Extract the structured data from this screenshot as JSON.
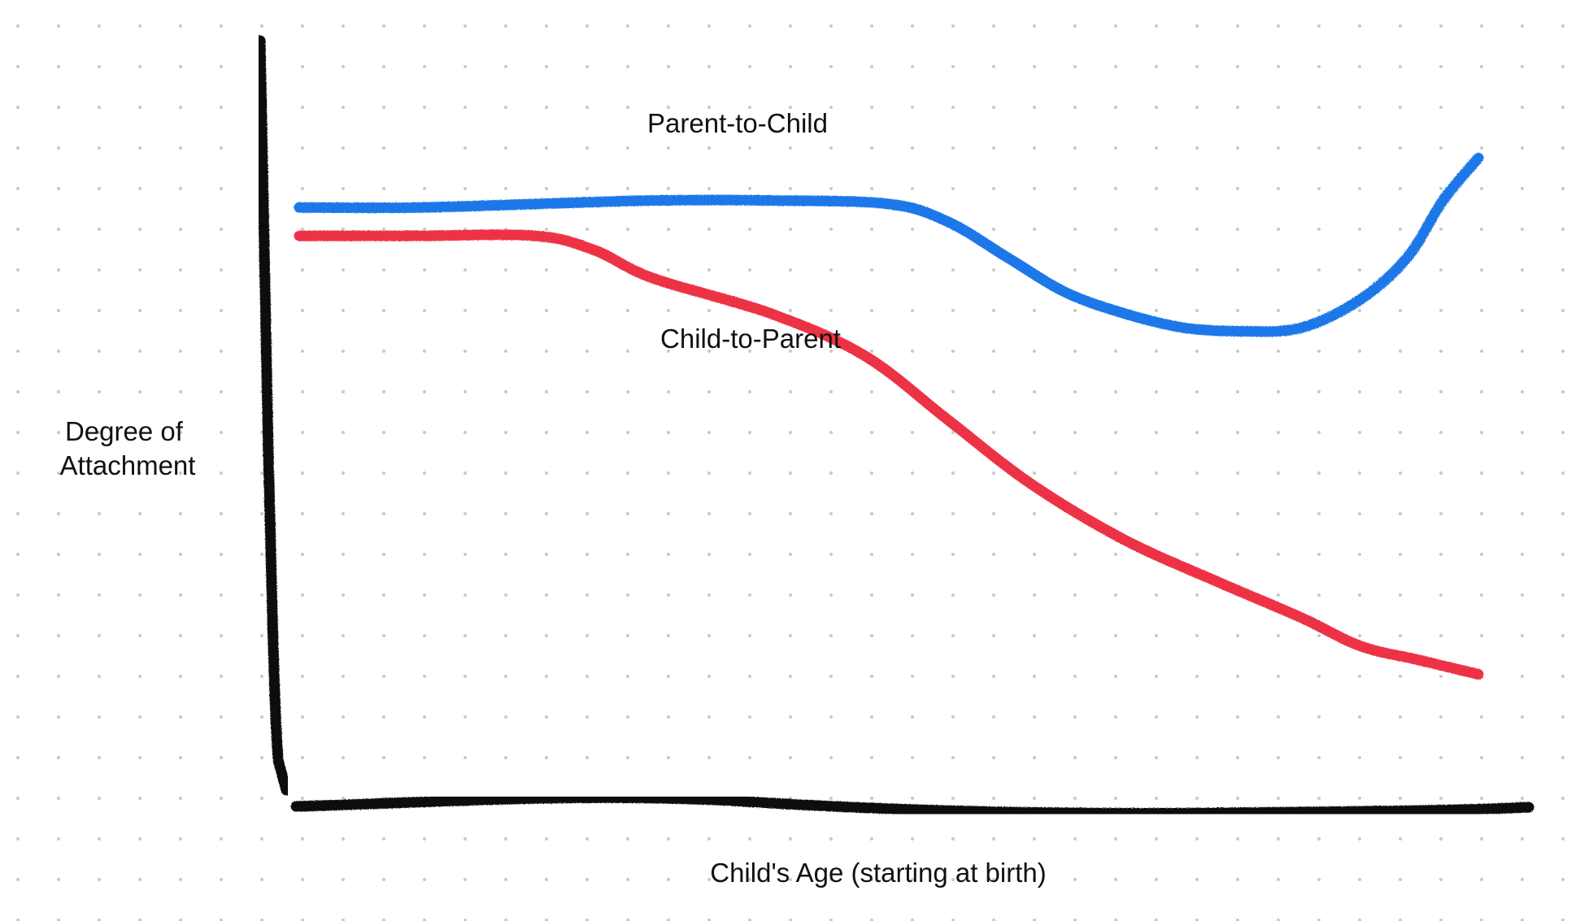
{
  "chart_data": {
    "type": "line",
    "title": "",
    "xlabel": "Child's Age (starting at birth)",
    "ylabel_lines": [
      "Degree of",
      "Attachment"
    ],
    "xlim": [
      0,
      100
    ],
    "ylim": [
      0,
      100
    ],
    "grid": "dot-grid",
    "series": [
      {
        "name": "Parent-to-Child",
        "color": "#1f78e8",
        "x": [
          0,
          10,
          20,
          30,
          40,
          50,
          55,
          60,
          65,
          70,
          75,
          80,
          85,
          90,
          94,
          97,
          100
        ],
        "y": [
          81,
          81,
          81.5,
          82,
          82,
          81.5,
          79,
          74,
          69,
          66,
          64,
          63.5,
          64,
          68,
          74,
          82,
          88
        ]
      },
      {
        "name": "Child-to-Parent",
        "color": "#ee3344",
        "x": [
          0,
          10,
          20,
          25,
          30,
          40,
          48,
          55,
          62,
          70,
          78,
          85,
          90,
          95,
          100
        ],
        "y": [
          77,
          77,
          77,
          75,
          71,
          66,
          60,
          51,
          42,
          34,
          28,
          23,
          19,
          17,
          15
        ]
      }
    ]
  }
}
